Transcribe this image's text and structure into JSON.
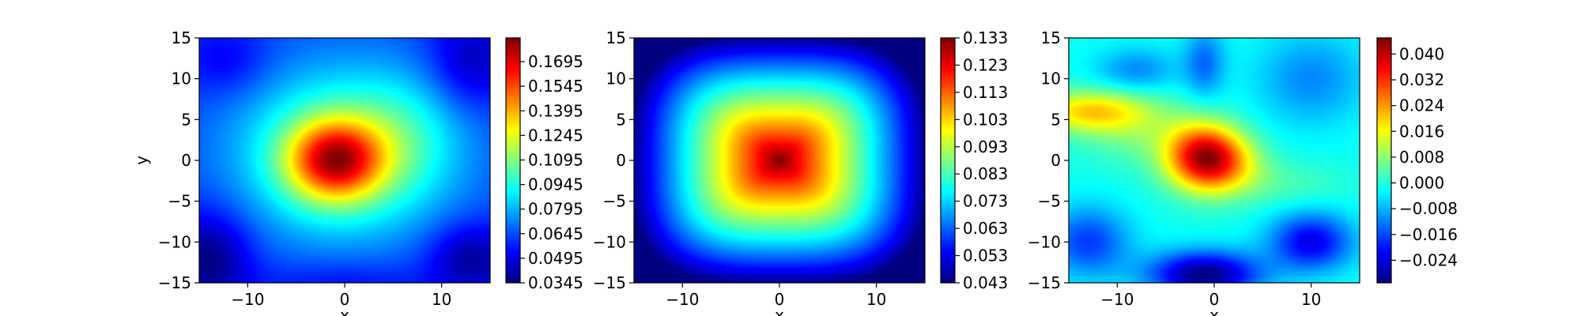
{
  "colormap": "jet",
  "chart_data": [
    {
      "type": "heatmap",
      "title": "",
      "xlabel": "x",
      "ylabel": "y",
      "xlim": [
        -15,
        15
      ],
      "ylim": [
        -15,
        15
      ],
      "x_ticks": [
        -10,
        0,
        10
      ],
      "y_ticks": [
        15,
        10,
        5,
        0,
        -5,
        -10,
        -15
      ],
      "grid": false,
      "colorbar": {
        "range": [
          0.0345,
          0.184
        ],
        "ticks": [
          "0.1695",
          "0.1545",
          "0.1395",
          "0.1245",
          "0.1095",
          "0.0945",
          "0.0795",
          "0.0645",
          "0.0495",
          "0.0345"
        ]
      },
      "features": [
        {
          "x": -1,
          "y": 0,
          "sx": 3.5,
          "sy": 3.5,
          "w": 1.0
        },
        {
          "x": 0,
          "y": 1,
          "sx": 8.5,
          "sy": 8.0,
          "w": 0.55
        },
        {
          "x": 6,
          "y": 3,
          "sx": 4,
          "sy": 5,
          "w": 0.15
        },
        {
          "x": -12,
          "y": 12,
          "sx": 3,
          "sy": 3,
          "w": -0.15
        },
        {
          "x": 13,
          "y": 12,
          "sx": 3,
          "sy": 4,
          "w": -0.25
        },
        {
          "x": -14,
          "y": -12,
          "sx": 3,
          "sy": 4,
          "w": -0.35
        },
        {
          "x": 13,
          "y": -12,
          "sx": 3,
          "sy": 3,
          "w": -0.3
        },
        {
          "x": 0,
          "y": -15,
          "sx": 6,
          "sy": 2,
          "w": -0.12
        }
      ]
    },
    {
      "type": "heatmap",
      "title": "",
      "xlabel": "x",
      "ylabel": "",
      "xlim": [
        -15,
        15
      ],
      "ylim": [
        -15,
        15
      ],
      "x_ticks": [
        -10,
        0,
        10
      ],
      "y_ticks": [
        15,
        10,
        5,
        0,
        -5,
        -10,
        -15
      ],
      "grid": false,
      "colorbar": {
        "range": [
          0.043,
          0.133
        ],
        "ticks": [
          "0.133",
          "0.123",
          "0.113",
          "0.103",
          "0.093",
          "0.083",
          "0.073",
          "0.063",
          "0.053",
          "0.043"
        ]
      },
      "shape": "superellipse"
    },
    {
      "type": "heatmap",
      "title": "",
      "xlabel": "x",
      "ylabel": "",
      "xlim": [
        -15,
        15
      ],
      "ylim": [
        -15,
        15
      ],
      "x_ticks": [
        -10,
        0,
        10
      ],
      "y_ticks": [
        15,
        10,
        5,
        0,
        -5,
        -10,
        -15
      ],
      "grid": false,
      "colorbar": {
        "range": [
          -0.031,
          0.045
        ],
        "ticks": [
          "0.040",
          "0.032",
          "0.024",
          "0.016",
          "0.008",
          "0.000",
          "−0.008",
          "−0.016",
          "−0.024"
        ]
      },
      "features": [
        {
          "x": -1,
          "y": 0.5,
          "sx": 2.8,
          "sy": 2.8,
          "w": 1.0
        },
        {
          "x": 1.5,
          "y": -1,
          "sx": 3,
          "sy": 2.5,
          "w": 0.25
        },
        {
          "x": -13,
          "y": 6,
          "sx": 4,
          "sy": 1.8,
          "w": 0.5
        },
        {
          "x": -8,
          "y": 4,
          "sx": 4,
          "sy": 3,
          "w": 0.2
        },
        {
          "x": -1,
          "y": -14,
          "sx": 4,
          "sy": 2,
          "w": -0.75
        },
        {
          "x": 10,
          "y": -10,
          "sx": 3,
          "sy": 2.5,
          "w": -0.55
        },
        {
          "x": -13,
          "y": -10,
          "sx": 3,
          "sy": 3,
          "w": -0.4
        },
        {
          "x": -1,
          "y": 12,
          "sx": 1.5,
          "sy": 3,
          "w": -0.3
        },
        {
          "x": -8,
          "y": 11,
          "sx": 3,
          "sy": 2,
          "w": -0.25
        },
        {
          "x": 10,
          "y": 10,
          "sx": 4,
          "sy": 4,
          "w": -0.25
        },
        {
          "x": 8,
          "y": -3,
          "sx": 4,
          "sy": 2,
          "w": 0.1
        }
      ]
    }
  ]
}
